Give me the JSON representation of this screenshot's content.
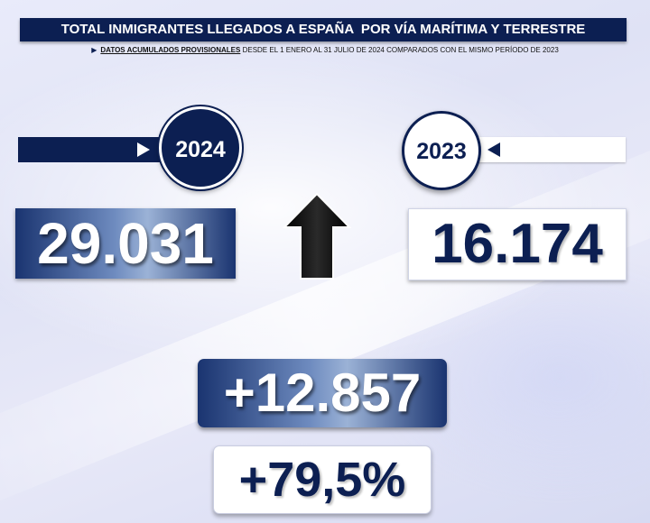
{
  "header": {
    "title": "TOTAL INMIGRANTES LLEGADOS A ESPAÑA  POR VÍA MARÍTIMA Y TERRESTRE",
    "subtitle_emphasis": "DATOS ACUMULADOS PROVISIONALES",
    "subtitle_rest": " DESDE EL 1 ENERO AL 31 JULIO DE 2024 COMPARADOS CON EL MISMO PERÍODO DE 2023"
  },
  "current": {
    "year": "2024",
    "value": "29.031"
  },
  "previous": {
    "year": "2023",
    "value": "16.174"
  },
  "trend": {
    "icon": "up-arrow-icon",
    "direction": "up"
  },
  "difference": {
    "absolute": "+12.857",
    "percent": "+79,5%"
  },
  "colors": {
    "navy": "#0c1f52",
    "white": "#ffffff",
    "arrow": "#000000"
  }
}
